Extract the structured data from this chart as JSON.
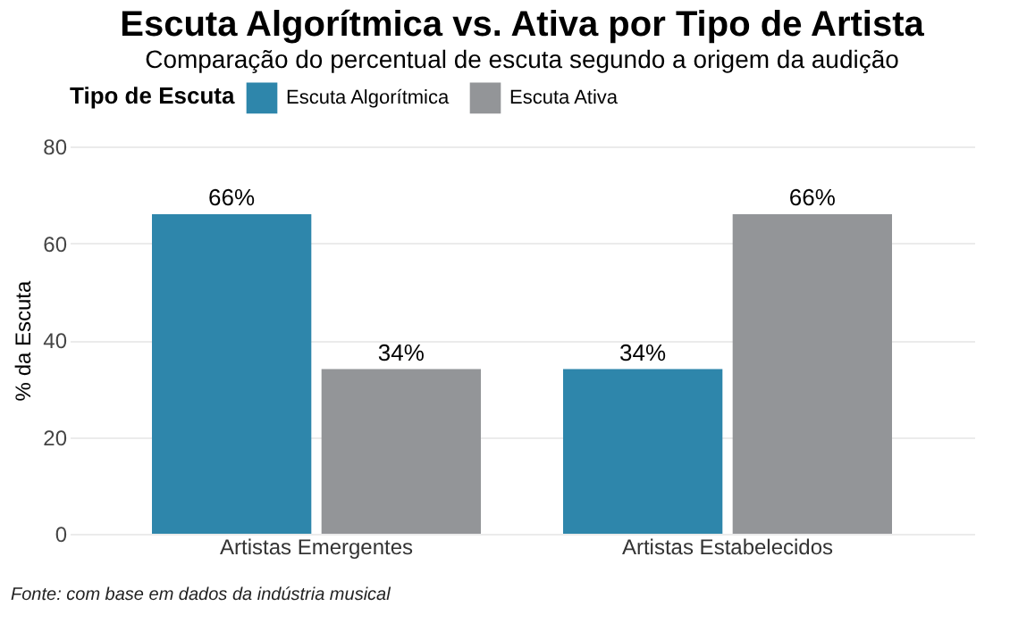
{
  "chart_data": {
    "type": "bar",
    "title": "Escuta Algorítmica vs. Ativa por Tipo de Artista",
    "subtitle": "Comparação do percentual de escuta segundo a origem da audição",
    "ylabel": "% da Escuta",
    "legend_title": "Tipo de Escuta",
    "categories": [
      "Artistas Emergentes",
      "Artistas Estabelecidos"
    ],
    "series": [
      {
        "name": "Escuta Algorítmica",
        "color": "#2e86ab",
        "values": [
          66,
          34
        ],
        "value_labels": [
          "66%",
          "34%"
        ]
      },
      {
        "name": "Escuta Ativa",
        "color": "#939598",
        "values": [
          34,
          66
        ],
        "value_labels": [
          "34%",
          "66%"
        ]
      }
    ],
    "ylim": [
      0,
      80
    ],
    "yticks": [
      0,
      20,
      40,
      60,
      80
    ],
    "grid": "y",
    "legend": "top",
    "annotations": [
      "Fonte: com base em dados da indústria musical"
    ]
  }
}
